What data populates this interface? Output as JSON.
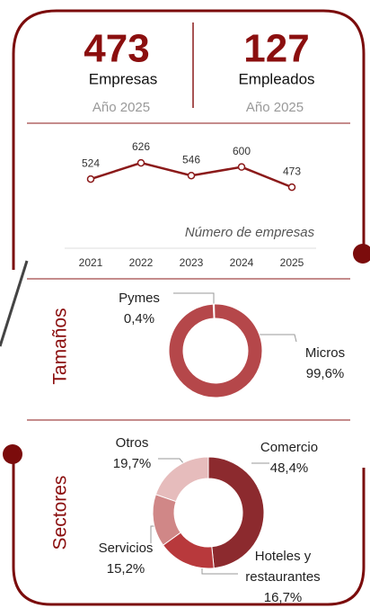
{
  "kpis": [
    {
      "value": "473",
      "label": "Empresas",
      "period": "Año 2025"
    },
    {
      "value": "127",
      "label": "Empleados",
      "period": "Año 2025"
    }
  ],
  "chart_data": [
    {
      "type": "line",
      "annotation": "Número de empresas",
      "categories": [
        "2021",
        "2022",
        "2023",
        "2024",
        "2025"
      ],
      "values": [
        524,
        626,
        546,
        600,
        473
      ],
      "color": "#8b1a1a",
      "ylim": [
        400,
        700
      ]
    },
    {
      "type": "donut",
      "title": "Tamaños",
      "categories": [
        "Pymes",
        "Micros"
      ],
      "values": [
        0.4,
        99.6
      ],
      "value_labels": [
        "0,4%",
        "99,6%"
      ],
      "colors": [
        "#d9a0a0",
        "#b5474a"
      ]
    },
    {
      "type": "donut",
      "title": "Sectores",
      "categories": [
        "Comercio",
        "Hoteles y restaurantes",
        "Servicios",
        "Otros"
      ],
      "values": [
        48.4,
        16.7,
        15.2,
        19.7
      ],
      "value_labels": [
        "48,4%",
        "16,7%",
        "15,2%",
        "19,7%"
      ],
      "colors": [
        "#8c2a2e",
        "#b8393c",
        "#d08787",
        "#e6bcbc"
      ]
    }
  ]
}
